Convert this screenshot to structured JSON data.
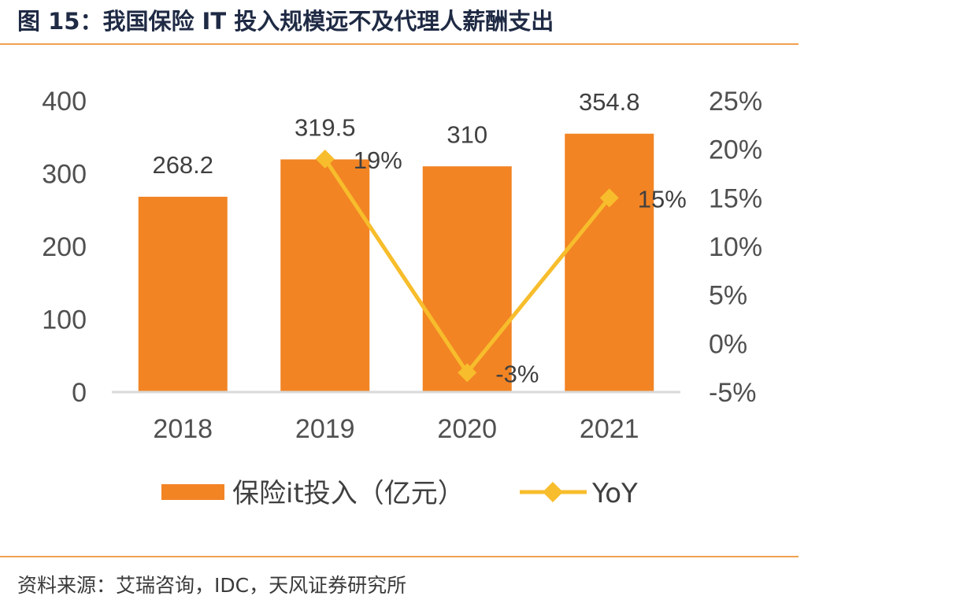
{
  "header": {
    "title": "图 15：我国保险 IT 投入规模远不及代理人薪酬支出"
  },
  "footer": {
    "source": "资料来源：艾瑞咨询，IDC，天风证券研究所"
  },
  "colors": {
    "bar": "#f28424",
    "line": "#f7bd2c",
    "rule": "#f0a050",
    "axis": "#d9d9d9"
  },
  "chart_data": {
    "type": "bar",
    "categories": [
      "2018",
      "2019",
      "2020",
      "2021"
    ],
    "series": [
      {
        "name": "保险it投入（亿元）",
        "type": "bar",
        "axis": "left",
        "values": [
          268.2,
          319.5,
          310,
          354.8
        ],
        "labels": [
          "268.2",
          "319.5",
          "310",
          "354.8"
        ]
      },
      {
        "name": "YoY",
        "type": "line",
        "axis": "right",
        "marker": "diamond",
        "values": [
          null,
          19,
          -3,
          15
        ],
        "labels": [
          null,
          "19%",
          "-3%",
          "15%"
        ]
      }
    ],
    "y_left": {
      "min": 0,
      "max": 400,
      "ticks": [
        0,
        100,
        200,
        300,
        400
      ],
      "tick_labels": [
        "0",
        "100",
        "200",
        "300",
        "400"
      ]
    },
    "y_right": {
      "min": -5,
      "max": 25,
      "ticks": [
        -5,
        0,
        5,
        10,
        15,
        20,
        25
      ],
      "tick_labels": [
        "-5%",
        "0%",
        "5%",
        "10%",
        "15%",
        "20%",
        "25%"
      ]
    },
    "grid": false,
    "legend": "bottom"
  }
}
